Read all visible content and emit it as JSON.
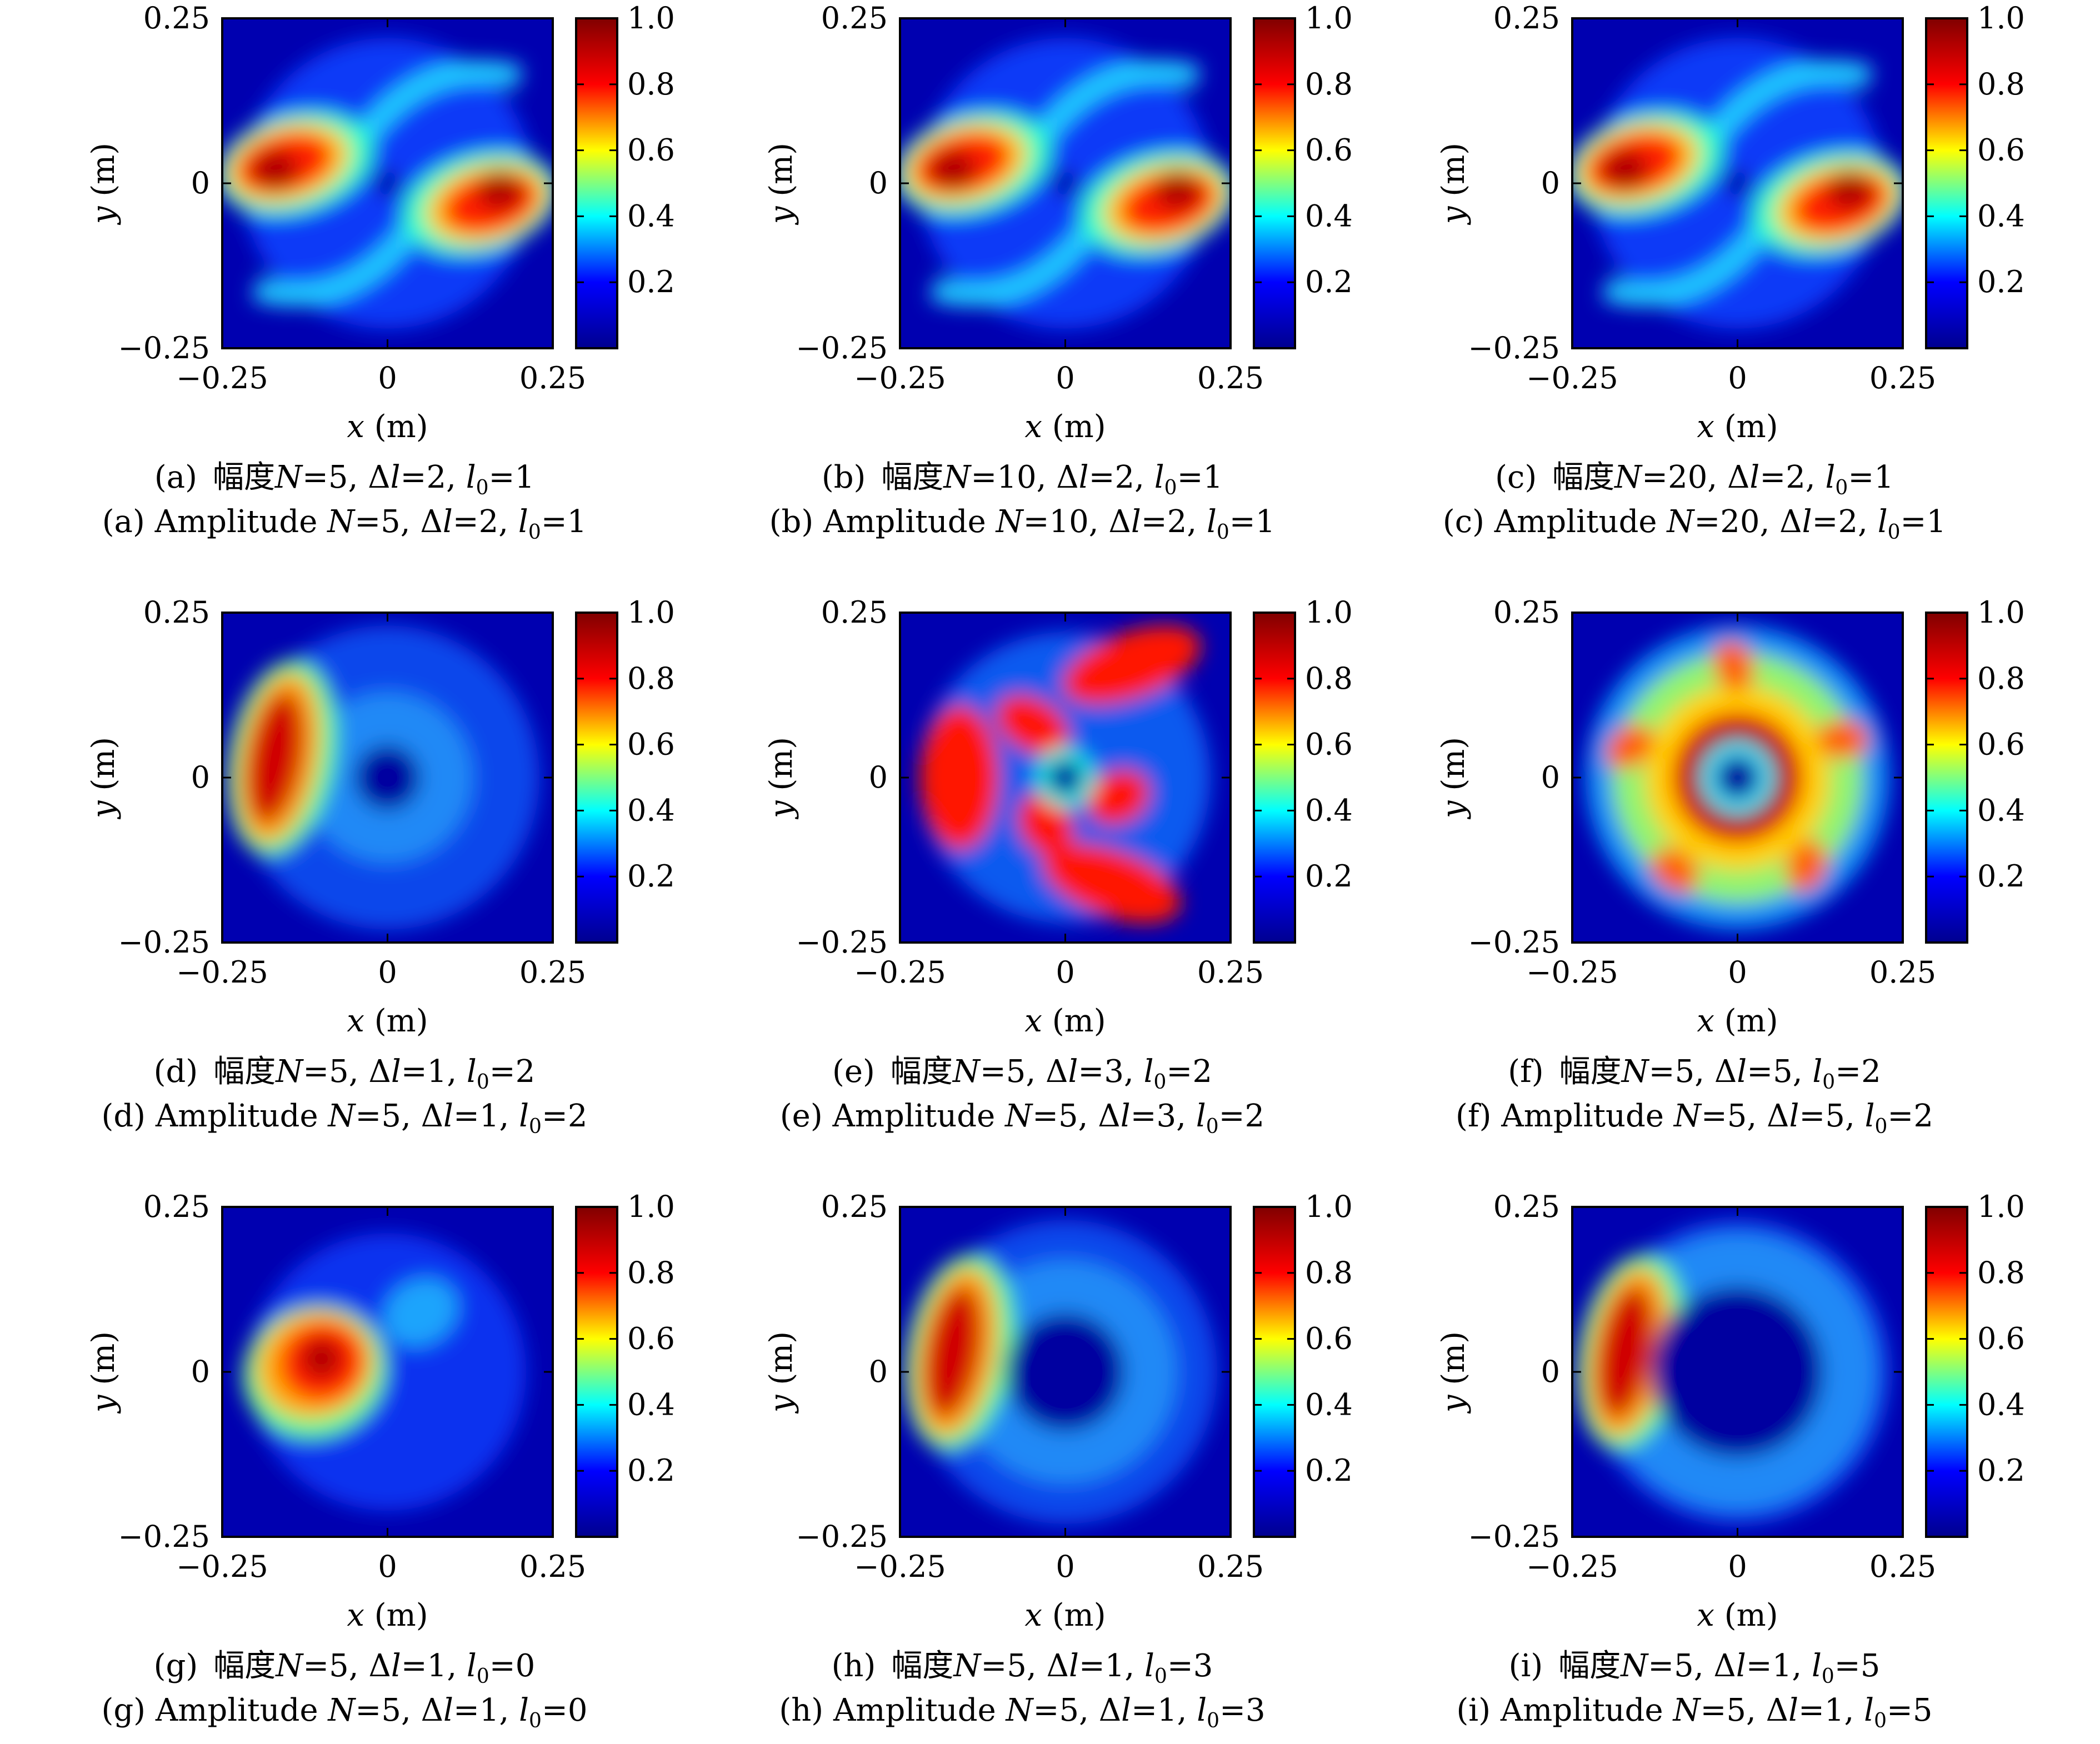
{
  "chart_data": [
    {
      "type": "heatmap",
      "panel": "a",
      "n": 5,
      "delta_l": 2,
      "l0": 1,
      "pattern": "two-lobe spiral, vortex at origin",
      "xlim": [
        -0.25,
        0.25
      ],
      "ylim": [
        -0.25,
        0.25
      ],
      "xticks": [
        "−0.25",
        "0",
        "0.25"
      ],
      "yticks": [
        "0.25",
        "0",
        "−0.25"
      ],
      "xlabel": {
        "var": "x",
        "unit": "(m)"
      },
      "ylabel": {
        "var": "y",
        "unit": "(m)"
      },
      "colorbar": {
        "range": [
          0,
          1.0
        ],
        "ticks": [
          "1.0",
          "0.8",
          "0.6",
          "0.4",
          "0.2"
        ],
        "colormap": "jet"
      },
      "caption_cn": {
        "label": "(a)",
        "word": "幅度",
        "vals": [
          "5",
          "2",
          "1"
        ]
      },
      "caption_en": {
        "label": "(a)",
        "word": "Amplitude",
        "vals": [
          "5",
          "2",
          "1"
        ]
      }
    },
    {
      "type": "heatmap",
      "panel": "b",
      "n": 10,
      "delta_l": 2,
      "l0": 1,
      "pattern": "two-lobe spiral, vortex at origin",
      "xlim": [
        -0.25,
        0.25
      ],
      "ylim": [
        -0.25,
        0.25
      ],
      "xticks": [
        "−0.25",
        "0",
        "0.25"
      ],
      "yticks": [
        "0.25",
        "0",
        "−0.25"
      ],
      "xlabel": {
        "var": "x",
        "unit": "(m)"
      },
      "ylabel": {
        "var": "y",
        "unit": "(m)"
      },
      "colorbar": {
        "range": [
          0,
          1.0
        ],
        "ticks": [
          "1.0",
          "0.8",
          "0.6",
          "0.4",
          "0.2"
        ],
        "colormap": "jet"
      },
      "caption_cn": {
        "label": "(b)",
        "word": "幅度",
        "vals": [
          "10",
          "2",
          "1"
        ]
      },
      "caption_en": {
        "label": "(b)",
        "word": "Amplitude",
        "vals": [
          "10",
          "2",
          "1"
        ]
      }
    },
    {
      "type": "heatmap",
      "panel": "c",
      "n": 20,
      "delta_l": 2,
      "l0": 1,
      "pattern": "two-lobe spiral, vortex at origin",
      "xlim": [
        -0.25,
        0.25
      ],
      "ylim": [
        -0.25,
        0.25
      ],
      "xticks": [
        "−0.25",
        "0",
        "0.25"
      ],
      "yticks": [
        "0.25",
        "0",
        "−0.25"
      ],
      "xlabel": {
        "var": "x",
        "unit": "(m)"
      },
      "ylabel": {
        "var": "y",
        "unit": "(m)"
      },
      "colorbar": {
        "range": [
          0,
          1.0
        ],
        "ticks": [
          "1.0",
          "0.8",
          "0.6",
          "0.4",
          "0.2"
        ],
        "colormap": "jet"
      },
      "caption_cn": {
        "label": "(c)",
        "word": "幅度",
        "vals": [
          "20",
          "2",
          "1"
        ]
      },
      "caption_en": {
        "label": "(c)",
        "word": "Amplitude",
        "vals": [
          "20",
          "2",
          "1"
        ]
      }
    },
    {
      "type": "heatmap",
      "panel": "d",
      "n": 5,
      "delta_l": 1,
      "l0": 2,
      "pattern": "single crescent lobe left, dark hole",
      "xlim": [
        -0.25,
        0.25
      ],
      "ylim": [
        -0.25,
        0.25
      ],
      "xticks": [
        "−0.25",
        "0",
        "0.25"
      ],
      "yticks": [
        "0.25",
        "0",
        "−0.25"
      ],
      "xlabel": {
        "var": "x",
        "unit": "(m)"
      },
      "ylabel": {
        "var": "y",
        "unit": "(m)"
      },
      "colorbar": {
        "range": [
          0,
          1.0
        ],
        "ticks": [
          "1.0",
          "0.8",
          "0.6",
          "0.4",
          "0.2"
        ],
        "colormap": "jet"
      },
      "caption_cn": {
        "label": "(d)",
        "word": "幅度",
        "vals": [
          "5",
          "1",
          "2"
        ]
      },
      "caption_en": {
        "label": "(d)",
        "word": "Amplitude",
        "vals": [
          "5",
          "1",
          "2"
        ]
      }
    },
    {
      "type": "heatmap",
      "panel": "e",
      "n": 5,
      "delta_l": 3,
      "l0": 2,
      "pattern": "three-arm pinwheel, vortex at origin",
      "xlim": [
        -0.25,
        0.25
      ],
      "ylim": [
        -0.25,
        0.25
      ],
      "xticks": [
        "−0.25",
        "0",
        "0.25"
      ],
      "yticks": [
        "0.25",
        "0",
        "−0.25"
      ],
      "xlabel": {
        "var": "x",
        "unit": "(m)"
      },
      "ylabel": {
        "var": "y",
        "unit": "(m)"
      },
      "colorbar": {
        "range": [
          0,
          1.0
        ],
        "ticks": [
          "1.0",
          "0.8",
          "0.6",
          "0.4",
          "0.2"
        ],
        "colormap": "jet"
      },
      "caption_cn": {
        "label": "(e)",
        "word": "幅度",
        "vals": [
          "5",
          "3",
          "2"
        ]
      },
      "caption_en": {
        "label": "(e)",
        "word": "Amplitude",
        "vals": [
          "5",
          "3",
          "2"
        ]
      }
    },
    {
      "type": "heatmap",
      "panel": "f",
      "n": 5,
      "delta_l": 5,
      "l0": 2,
      "pattern": "bright ring with five outer petals",
      "xlim": [
        -0.25,
        0.25
      ],
      "ylim": [
        -0.25,
        0.25
      ],
      "xticks": [
        "−0.25",
        "0",
        "0.25"
      ],
      "yticks": [
        "0.25",
        "0",
        "−0.25"
      ],
      "xlabel": {
        "var": "x",
        "unit": "(m)"
      },
      "ylabel": {
        "var": "y",
        "unit": "(m)"
      },
      "colorbar": {
        "range": [
          0,
          1.0
        ],
        "ticks": [
          "1.0",
          "0.8",
          "0.6",
          "0.4",
          "0.2"
        ],
        "colormap": "jet"
      },
      "caption_cn": {
        "label": "(f)",
        "word": "幅度",
        "vals": [
          "5",
          "5",
          "2"
        ]
      },
      "caption_en": {
        "label": "(f)",
        "word": "Amplitude",
        "vals": [
          "5",
          "5",
          "2"
        ]
      }
    },
    {
      "type": "heatmap",
      "panel": "g",
      "n": 5,
      "delta_l": 1,
      "l0": 0,
      "pattern": "single blob left of center",
      "xlim": [
        -0.25,
        0.25
      ],
      "ylim": [
        -0.25,
        0.25
      ],
      "xticks": [
        "−0.25",
        "0",
        "0.25"
      ],
      "yticks": [
        "0.25",
        "0",
        "−0.25"
      ],
      "xlabel": {
        "var": "x",
        "unit": "(m)"
      },
      "ylabel": {
        "var": "y",
        "unit": "(m)"
      },
      "colorbar": {
        "range": [
          0,
          1.0
        ],
        "ticks": [
          "1.0",
          "0.8",
          "0.6",
          "0.4",
          "0.2"
        ],
        "colormap": "jet"
      },
      "caption_cn": {
        "label": "(g)",
        "word": "幅度",
        "vals": [
          "5",
          "1",
          "0"
        ]
      },
      "caption_en": {
        "label": "(g)",
        "word": "Amplitude",
        "vals": [
          "5",
          "1",
          "0"
        ]
      }
    },
    {
      "type": "heatmap",
      "panel": "h",
      "n": 5,
      "delta_l": 1,
      "l0": 3,
      "pattern": "crescent lobe left, larger dark hole",
      "xlim": [
        -0.25,
        0.25
      ],
      "ylim": [
        -0.25,
        0.25
      ],
      "xticks": [
        "−0.25",
        "0",
        "0.25"
      ],
      "yticks": [
        "0.25",
        "0",
        "−0.25"
      ],
      "xlabel": {
        "var": "x",
        "unit": "(m)"
      },
      "ylabel": {
        "var": "y",
        "unit": "(m)"
      },
      "colorbar": {
        "range": [
          0,
          1.0
        ],
        "ticks": [
          "1.0",
          "0.8",
          "0.6",
          "0.4",
          "0.2"
        ],
        "colormap": "jet"
      },
      "caption_cn": {
        "label": "(h)",
        "word": "幅度",
        "vals": [
          "5",
          "1",
          "3"
        ]
      },
      "caption_en": {
        "label": "(h)",
        "word": "Amplitude",
        "vals": [
          "5",
          "1",
          "3"
        ]
      }
    },
    {
      "type": "heatmap",
      "panel": "i",
      "n": 5,
      "delta_l": 1,
      "l0": 5,
      "pattern": "crescent lobe left, largest dark hole",
      "xlim": [
        -0.25,
        0.25
      ],
      "ylim": [
        -0.25,
        0.25
      ],
      "xticks": [
        "−0.25",
        "0",
        "0.25"
      ],
      "yticks": [
        "0.25",
        "0",
        "−0.25"
      ],
      "xlabel": {
        "var": "x",
        "unit": "(m)"
      },
      "ylabel": {
        "var": "y",
        "unit": "(m)"
      },
      "colorbar": {
        "range": [
          0,
          1.0
        ],
        "ticks": [
          "1.0",
          "0.8",
          "0.6",
          "0.4",
          "0.2"
        ],
        "colormap": "jet"
      },
      "caption_cn": {
        "label": "(i)",
        "word": "幅度",
        "vals": [
          "5",
          "1",
          "5"
        ]
      },
      "caption_en": {
        "label": "(i)",
        "word": "Amplitude",
        "vals": [
          "5",
          "1",
          "5"
        ]
      }
    }
  ],
  "colors": {
    "jet_stops": [
      "#00008f",
      "#0000ff",
      "#00ffff",
      "#ffff00",
      "#ff0000",
      "#800000"
    ],
    "background": "#0000aa"
  }
}
